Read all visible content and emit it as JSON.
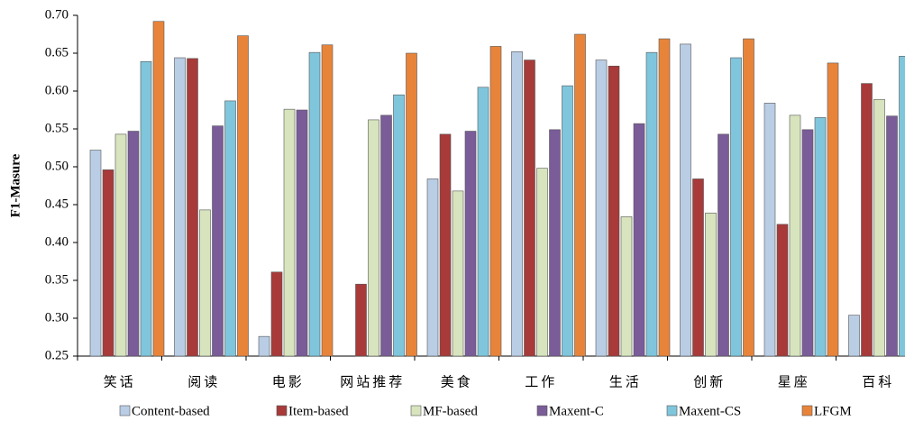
{
  "chart_data": {
    "type": "bar",
    "y_label": "F1-Masure",
    "categories": [
      "笑话",
      "阅读",
      "电影",
      "网站推荐",
      "美食",
      "工作",
      "生活",
      "创新",
      "星座",
      "百科"
    ],
    "series": [
      {
        "name": "Content-based",
        "color": "#b9cde5",
        "values": [
          0.522,
          0.644,
          0.276,
          null,
          0.484,
          0.652,
          0.641,
          0.662,
          0.584,
          0.304
        ]
      },
      {
        "name": "Item-based",
        "color": "#a83a3a",
        "values": [
          0.496,
          0.643,
          0.361,
          0.345,
          0.543,
          0.641,
          0.633,
          0.484,
          0.424,
          0.61
        ]
      },
      {
        "name": "MF-based",
        "color": "#d7e4bd",
        "values": [
          0.543,
          0.443,
          0.576,
          0.562,
          0.468,
          0.498,
          0.434,
          0.439,
          0.568,
          0.589
        ]
      },
      {
        "name": "Maxent-C",
        "color": "#7a5c99",
        "values": [
          0.547,
          0.554,
          0.575,
          0.568,
          0.547,
          0.549,
          0.557,
          0.543,
          0.549,
          0.567
        ]
      },
      {
        "name": "Maxent-CS",
        "color": "#7fc6dc",
        "values": [
          0.639,
          0.587,
          0.651,
          0.595,
          0.605,
          0.607,
          0.651,
          0.644,
          0.565,
          0.646
        ]
      },
      {
        "name": "LFGM",
        "color": "#e8843a",
        "values": [
          0.692,
          0.673,
          0.661,
          0.65,
          0.659,
          0.675,
          0.669,
          0.669,
          0.637,
          null
        ]
      }
    ],
    "ylim": [
      0.25,
      0.7
    ],
    "yticks": [
      {
        "value": 0.25,
        "label": "0.25"
      },
      {
        "value": 0.3,
        "label": "0.30"
      },
      {
        "value": 0.35,
        "label": "0.35"
      },
      {
        "value": 0.4,
        "label": "0.40"
      },
      {
        "value": 0.45,
        "label": "0.45"
      },
      {
        "value": 0.5,
        "label": "0.50"
      },
      {
        "value": 0.55,
        "label": "0.55"
      },
      {
        "value": 0.6,
        "label": "0.60"
      },
      {
        "value": 0.65,
        "label": "0.65"
      },
      {
        "value": 0.7,
        "label": "0.70"
      }
    ],
    "grid": false,
    "legend": "bottom"
  }
}
